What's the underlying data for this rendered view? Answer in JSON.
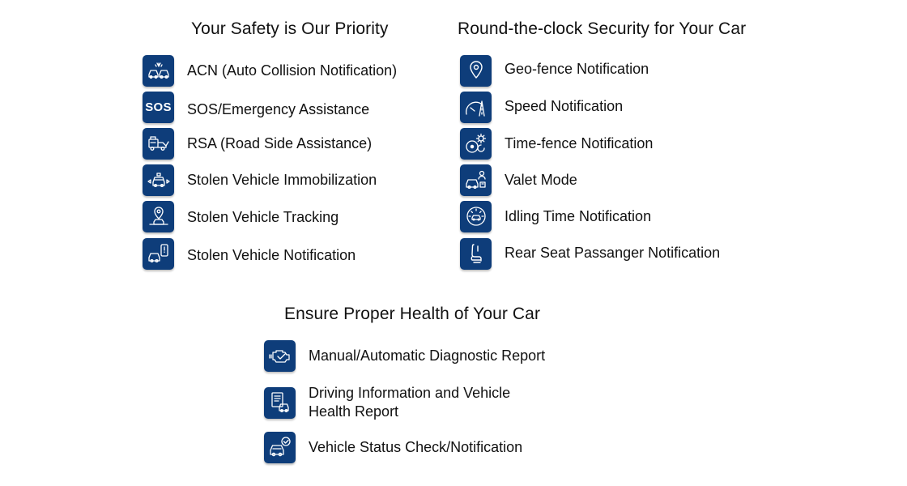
{
  "sections": {
    "safety": {
      "title": "Your Safety is Our Priority",
      "items": [
        {
          "label": "ACN (Auto Collision Notification)",
          "icon": "car-collision-icon"
        },
        {
          "label": "SOS/Emergency Assistance",
          "icon": "sos-icon",
          "icon_text": "SOS"
        },
        {
          "label": "RSA (Road Side Assistance)",
          "icon": "tow-truck-icon"
        },
        {
          "label": "Stolen Vehicle Immobilization",
          "icon": "immobilized-car-icon"
        },
        {
          "label": "Stolen Vehicle Tracking",
          "icon": "location-tracking-icon"
        },
        {
          "label": "Stolen Vehicle Notification",
          "icon": "car-phone-alert-icon"
        }
      ]
    },
    "security": {
      "title": "Round-the-clock Security for Your Car",
      "items": [
        {
          "label": "Geo-fence Notification",
          "icon": "map-pin-icon"
        },
        {
          "label": "Speed Notification",
          "icon": "speedometer-road-icon"
        },
        {
          "label": "Time-fence Notification",
          "icon": "clock-gear-icon"
        },
        {
          "label": "Valet Mode",
          "icon": "valet-car-icon"
        },
        {
          "label": "Idling Time Notification",
          "icon": "idling-gauge-icon"
        },
        {
          "label": "Rear Seat Passanger Notification",
          "icon": "car-seat-icon"
        }
      ]
    },
    "health": {
      "title": "Ensure Proper Health of Your Car",
      "items": [
        {
          "label": "Manual/Automatic Diagnostic Report",
          "icon": "engine-check-icon"
        },
        {
          "label": "Driving Information and Vehicle Health Report",
          "icon": "car-report-icon"
        },
        {
          "label": "Vehicle Status Check/Notification",
          "icon": "car-status-check-icon"
        }
      ]
    }
  },
  "colors": {
    "icon_tile": "#0e3d7a",
    "icon_stroke": "#ffffff",
    "text": "#111111"
  }
}
